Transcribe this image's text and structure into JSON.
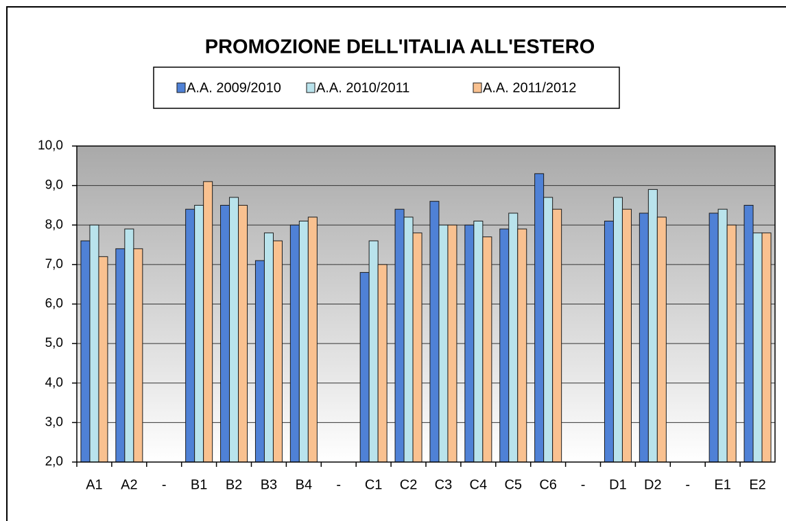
{
  "chart_data": {
    "type": "bar",
    "title": "PROMOZIONE DELL'ITALIA ALL'ESTERO",
    "categories": [
      "A1",
      "A2",
      "-",
      "B1",
      "B2",
      "B3",
      "B4",
      "-",
      "C1",
      "C2",
      "C3",
      "C4",
      "C5",
      "C6",
      "-",
      "D1",
      "D2",
      "-",
      "E1",
      "E2"
    ],
    "series": [
      {
        "name": "A.A. 2009/2010",
        "color": "#4f81d6",
        "values": [
          7.6,
          7.4,
          null,
          8.4,
          8.5,
          7.1,
          8.0,
          null,
          6.8,
          8.4,
          8.6,
          8.0,
          7.9,
          9.3,
          null,
          8.1,
          8.3,
          null,
          8.3,
          8.5
        ]
      },
      {
        "name": "A.A. 2010/2011",
        "color": "#b9e3ec",
        "values": [
          8.0,
          7.9,
          null,
          8.5,
          8.7,
          7.8,
          8.1,
          null,
          7.6,
          8.2,
          8.0,
          8.1,
          8.3,
          8.7,
          null,
          8.7,
          8.9,
          null,
          8.4,
          7.8
        ]
      },
      {
        "name": "A.A. 2011/2012",
        "color": "#f9c190",
        "values": [
          7.2,
          7.4,
          null,
          9.1,
          8.5,
          7.6,
          8.2,
          null,
          7.0,
          7.8,
          8.0,
          7.7,
          7.9,
          8.4,
          null,
          8.4,
          8.2,
          null,
          8.0,
          7.8
        ]
      }
    ],
    "ylim": [
      2,
      10
    ],
    "yticks": [
      {
        "value": 2,
        "label": "2,0"
      },
      {
        "value": 3,
        "label": "3,0"
      },
      {
        "value": 4,
        "label": "4,0"
      },
      {
        "value": 5,
        "label": "5,0"
      },
      {
        "value": 6,
        "label": "6,0"
      },
      {
        "value": 7,
        "label": "7,0"
      },
      {
        "value": 8,
        "label": "8,0"
      },
      {
        "value": 9,
        "label": "9,0"
      },
      {
        "value": 10,
        "label": "10,0"
      }
    ],
    "grid": true,
    "legend": "top"
  }
}
